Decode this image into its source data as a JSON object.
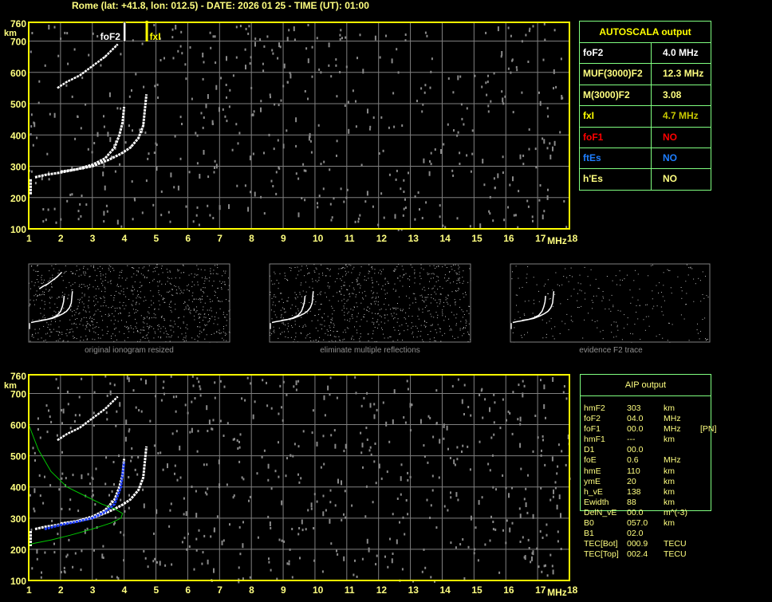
{
  "title": "Rome (lat: +41.8, lon: 012.5) - DATE: 2026 01 25 - TIME (UT): 01:00",
  "colors": {
    "frame": "#ffff00",
    "grid": "#808080",
    "noise": "#8a8a8a",
    "trace": "#ffffff",
    "blue": "#2040ff",
    "green": "#00c800",
    "table_border": "#80ff80"
  },
  "axes": {
    "x_ticks": [
      "1",
      "2",
      "3",
      "4",
      "5",
      "6",
      "7",
      "8",
      "9",
      "10",
      "11",
      "12",
      "13",
      "14",
      "15",
      "16",
      "17",
      "18"
    ],
    "x_unit": "MHz",
    "y_ticks": [
      "100",
      "200",
      "300",
      "400",
      "500",
      "600",
      "700",
      "760"
    ],
    "y_unit": "km",
    "x_range": [
      1,
      18
    ],
    "y_range": [
      100,
      760
    ]
  },
  "markers": {
    "foF2_label": "foF2",
    "foF2_freq": 4.0,
    "fxI_label": "fxI",
    "fxI_freq": 4.7
  },
  "traces": {
    "o_mode": [
      [
        1.2,
        265
      ],
      [
        1.5,
        272
      ],
      [
        2,
        280
      ],
      [
        2.5,
        290
      ],
      [
        3,
        305
      ],
      [
        3.4,
        325
      ],
      [
        3.7,
        360
      ],
      [
        3.85,
        400
      ],
      [
        3.95,
        440
      ],
      [
        4.0,
        490
      ]
    ],
    "x_mode": [
      [
        2,
        283
      ],
      [
        2.5,
        290
      ],
      [
        3,
        300
      ],
      [
        3.5,
        320
      ],
      [
        3.9,
        340
      ],
      [
        4.2,
        360
      ],
      [
        4.45,
        390
      ],
      [
        4.6,
        430
      ],
      [
        4.7,
        530
      ]
    ],
    "multiple": [
      [
        1.9,
        550
      ],
      [
        2.2,
        570
      ],
      [
        2.6,
        590
      ],
      [
        3,
        620
      ],
      [
        3.4,
        650
      ],
      [
        3.8,
        690
      ]
    ],
    "low_segment": [
      [
        1.05,
        210
      ],
      [
        1.05,
        260
      ]
    ],
    "aip_blue": [
      [
        1.5,
        265
      ],
      [
        2,
        278
      ],
      [
        2.5,
        288
      ],
      [
        3,
        300
      ],
      [
        3.4,
        320
      ],
      [
        3.7,
        345
      ],
      [
        3.9,
        400
      ],
      [
        4.0,
        480
      ]
    ],
    "aip_green": [
      [
        1,
        600
      ],
      [
        1.3,
        520
      ],
      [
        1.7,
        450
      ],
      [
        2.2,
        400
      ],
      [
        2.8,
        370
      ],
      [
        3.3,
        345
      ],
      [
        3.7,
        330
      ],
      [
        3.95,
        315
      ],
      [
        3.9,
        300
      ],
      [
        3.6,
        285
      ],
      [
        3,
        265
      ],
      [
        2.3,
        245
      ],
      [
        1.7,
        230
      ],
      [
        1.2,
        220
      ],
      [
        1,
        215
      ]
    ]
  },
  "autoscala": {
    "title": "AUTOSCALA output",
    "rows": [
      {
        "key": "foF2",
        "value": "4.0 MHz",
        "key_color": "#ffffff",
        "value_color": "#ffffff"
      },
      {
        "key": "MUF(3000)F2",
        "value": "12.3 MHz",
        "key_color": "#ffff80",
        "value_color": "#ffff80"
      },
      {
        "key": "M(3000)F2",
        "value": "3.08",
        "key_color": "#ffff80",
        "value_color": "#ffff80"
      },
      {
        "key": "fxI",
        "value": "4.7 MHz",
        "key_color": "#ffff00",
        "value_color": "#c8c800"
      },
      {
        "key": "foF1",
        "value": "NO",
        "key_color": "#ff0000",
        "value_color": "#ff0000"
      },
      {
        "key": "ftEs",
        "value": "NO",
        "key_color": "#1e7eff",
        "value_color": "#1e7eff"
      },
      {
        "key": "h'Es",
        "value": "NO",
        "key_color": "#ffff80",
        "value_color": "#ffff80"
      }
    ]
  },
  "thumbnails": [
    {
      "label": "original ionogram resized"
    },
    {
      "label": "eliminate multiple reflections"
    },
    {
      "label": "evidence F2 trace"
    }
  ],
  "aip": {
    "title": "AIP output",
    "rows": [
      {
        "k": "hmF2",
        "v": "303",
        "u": "km",
        "x": ""
      },
      {
        "k": "foF2",
        "v": "04.0",
        "u": "MHz",
        "x": ""
      },
      {
        "k": "foF1",
        "v": "00.0",
        "u": "MHz",
        "x": "[PN]"
      },
      {
        "k": "hmF1",
        "v": "---",
        "u": "km",
        "x": ""
      },
      {
        "k": "D1",
        "v": "00.0",
        "u": "",
        "x": ""
      },
      {
        "k": "foE",
        "v": "0.6",
        "u": "MHz",
        "x": ""
      },
      {
        "k": "hmE",
        "v": "110",
        "u": "km",
        "x": ""
      },
      {
        "k": "ymE",
        "v": "20",
        "u": "km",
        "x": ""
      },
      {
        "k": "h_vE",
        "v": "138",
        "u": "km",
        "x": ""
      },
      {
        "k": "Ewidth",
        "v": "88",
        "u": "km",
        "x": ""
      },
      {
        "k": "DelN_vE",
        "v": "00.0",
        "u": "m^(-3)",
        "x": ""
      },
      {
        "k": "B0",
        "v": "057.0",
        "u": "km",
        "x": ""
      },
      {
        "k": "B1",
        "v": "02.0",
        "u": "",
        "x": ""
      },
      {
        "k": "TEC[Bot]",
        "v": "000.9",
        "u": "TECU",
        "x": ""
      },
      {
        "k": "TEC[Top]",
        "v": "002.4",
        "u": "TECU",
        "x": ""
      }
    ]
  }
}
